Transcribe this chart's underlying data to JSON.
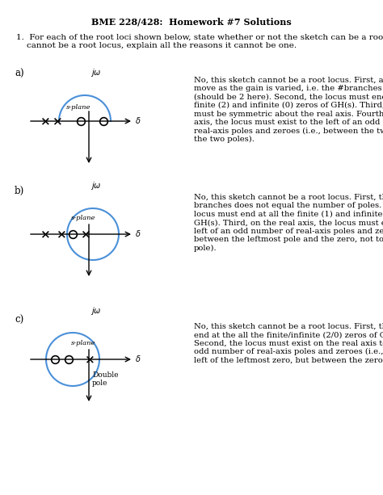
{
  "title": "BME 228/428:  Homework #7 Solutions",
  "question": "1.  For each of the root loci shown below, state whether or not the sketch can be a root locus. If the sketch\n    cannot be a root locus, explain all the reasons it cannot be one.",
  "parts": [
    "a)",
    "b)",
    "c)"
  ],
  "answers": [
    "No, this sketch cannot be a root locus. First, all poles must\nmove as the gain is varied, i.e. the #branches = #poles\n(should be 2 here). Second, the locus must end at all the\nfinite (2) and infinite (0) zeros of GH(s). Third, the plot\nmust be symmetric about the real axis. Fourth, on the real\naxis, the locus must exist to the left of an odd number of\nreal-axis poles and zeroes (i.e., between the two zeroes and\nthe two poles).",
    "No, this sketch cannot be a root locus. First, the number of\nbranches does not equal the number of poles. Second, the\nlocus must end at all the finite (1) and infinite (2) zeros of\nGH(s). Third, on the real axis, the locus must exist to the\nleft of an odd number of real-axis poles and zeroes (i.e.,\nbetween the leftmost pole and the zero, not to the left of this\npole).",
    "No, this sketch cannot be a root locus. First, the locus must\nend at the all the finite/infinite (2/0) zeros of GH(s).\nSecond, the locus must exist on the real axis to the left of an\nodd number of real-axis poles and zeroes (i.e., not to the\nleft of the leftmost zero, but between the zeroes)."
  ],
  "bg_color": "#ffffff",
  "text_color": "#000000",
  "diagram_color": "#4a90d9",
  "axis_color": "#000000"
}
